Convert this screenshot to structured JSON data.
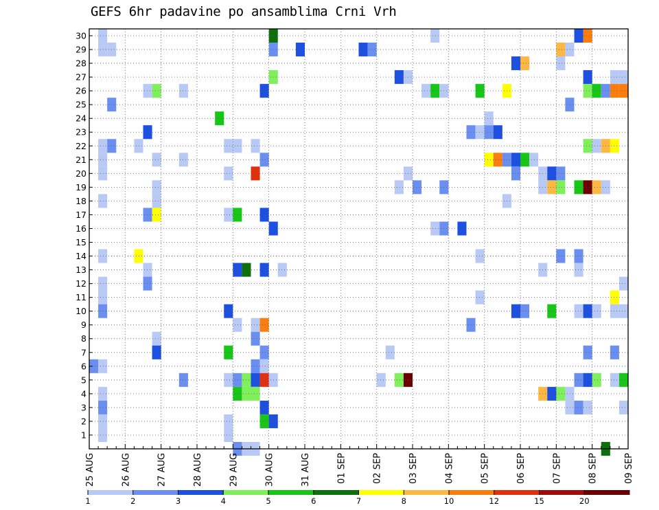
{
  "chart_data": {
    "type": "heatmap",
    "title": "GEFS 6hr padavine po ansamblima Crni Vrh",
    "xlabel": "",
    "ylabel": "",
    "x_tick_labels": [
      "25 AUG",
      "26 AUG",
      "27 AUG",
      "28 AUG",
      "29 AUG",
      "30 AUG",
      "31 AUG",
      "01 SEP",
      "02 SEP",
      "03 SEP",
      "04 SEP",
      "05 SEP",
      "06 SEP",
      "07 SEP",
      "08 SEP",
      "09 SEP"
    ],
    "y_tick_labels": [
      "1",
      "2",
      "3",
      "4",
      "5",
      "6",
      "7",
      "8",
      "9",
      "10",
      "11",
      "12",
      "13",
      "14",
      "15",
      "16",
      "17",
      "18",
      "19",
      "20",
      "21",
      "22",
      "23",
      "24",
      "25",
      "26",
      "27",
      "28",
      "29",
      "30"
    ],
    "xlim": [
      0,
      60
    ],
    "ylim": [
      0,
      30
    ],
    "x_step_hours": 6,
    "grid": true,
    "legend": {
      "placement": "bottom",
      "thresholds": [
        "1",
        "2",
        "3",
        "4",
        "5",
        "6",
        "7",
        "8",
        "10",
        "12",
        "15",
        "20"
      ],
      "colors": [
        "#b9c9f5",
        "#6a8ff0",
        "#1d4fe0",
        "#7ff05c",
        "#17c617",
        "#0d700d",
        "#ffff00",
        "#fdb844",
        "#fa7e0f",
        "#e0300d",
        "#a00c0c",
        "#6a0000"
      ]
    },
    "cells": [
      {
        "x": 1,
        "y": 30,
        "c": 0
      },
      {
        "x": 20,
        "y": 30,
        "c": 5
      },
      {
        "x": 38,
        "y": 30,
        "c": 0
      },
      {
        "x": 54,
        "y": 30,
        "c": 2
      },
      {
        "x": 55,
        "y": 30,
        "c": 8
      },
      {
        "x": 1,
        "y": 29,
        "c": 0
      },
      {
        "x": 2,
        "y": 29,
        "c": 0
      },
      {
        "x": 20,
        "y": 29,
        "c": 1
      },
      {
        "x": 23,
        "y": 29,
        "c": 2
      },
      {
        "x": 30,
        "y": 29,
        "c": 2
      },
      {
        "x": 31,
        "y": 29,
        "c": 1
      },
      {
        "x": 52,
        "y": 29,
        "c": 7
      },
      {
        "x": 53,
        "y": 29,
        "c": 0
      },
      {
        "x": 47,
        "y": 28,
        "c": 2
      },
      {
        "x": 48,
        "y": 28,
        "c": 7
      },
      {
        "x": 52,
        "y": 28,
        "c": 0
      },
      {
        "x": 20,
        "y": 27,
        "c": 3
      },
      {
        "x": 34,
        "y": 27,
        "c": 2
      },
      {
        "x": 35,
        "y": 27,
        "c": 0
      },
      {
        "x": 55,
        "y": 27,
        "c": 2
      },
      {
        "x": 58,
        "y": 27,
        "c": 0
      },
      {
        "x": 59,
        "y": 27,
        "c": 0
      },
      {
        "x": 6,
        "y": 26,
        "c": 0
      },
      {
        "x": 7,
        "y": 26,
        "c": 3
      },
      {
        "x": 10,
        "y": 26,
        "c": 0
      },
      {
        "x": 19,
        "y": 26,
        "c": 2
      },
      {
        "x": 37,
        "y": 26,
        "c": 0
      },
      {
        "x": 38,
        "y": 26,
        "c": 4
      },
      {
        "x": 39,
        "y": 26,
        "c": 0
      },
      {
        "x": 43,
        "y": 26,
        "c": 4
      },
      {
        "x": 46,
        "y": 26,
        "c": 6
      },
      {
        "x": 55,
        "y": 26,
        "c": 3
      },
      {
        "x": 56,
        "y": 26,
        "c": 4
      },
      {
        "x": 57,
        "y": 26,
        "c": 1
      },
      {
        "x": 58,
        "y": 26,
        "c": 8
      },
      {
        "x": 59,
        "y": 26,
        "c": 8
      },
      {
        "x": 2,
        "y": 25,
        "c": 1
      },
      {
        "x": 53,
        "y": 25,
        "c": 1
      },
      {
        "x": 14,
        "y": 24,
        "c": 4
      },
      {
        "x": 44,
        "y": 24,
        "c": 0
      },
      {
        "x": 6,
        "y": 23,
        "c": 2
      },
      {
        "x": 42,
        "y": 23,
        "c": 1
      },
      {
        "x": 43,
        "y": 23,
        "c": 0
      },
      {
        "x": 44,
        "y": 23,
        "c": 1
      },
      {
        "x": 45,
        "y": 23,
        "c": 2
      },
      {
        "x": 1,
        "y": 22,
        "c": 0
      },
      {
        "x": 2,
        "y": 22,
        "c": 1
      },
      {
        "x": 5,
        "y": 22,
        "c": 0
      },
      {
        "x": 15,
        "y": 22,
        "c": 0
      },
      {
        "x": 16,
        "y": 22,
        "c": 0
      },
      {
        "x": 18,
        "y": 22,
        "c": 0
      },
      {
        "x": 55,
        "y": 22,
        "c": 3
      },
      {
        "x": 56,
        "y": 22,
        "c": 0
      },
      {
        "x": 57,
        "y": 22,
        "c": 7
      },
      {
        "x": 58,
        "y": 22,
        "c": 6
      },
      {
        "x": 1,
        "y": 21,
        "c": 0
      },
      {
        "x": 7,
        "y": 21,
        "c": 0
      },
      {
        "x": 10,
        "y": 21,
        "c": 0
      },
      {
        "x": 19,
        "y": 21,
        "c": 1
      },
      {
        "x": 44,
        "y": 21,
        "c": 6
      },
      {
        "x": 45,
        "y": 21,
        "c": 8
      },
      {
        "x": 46,
        "y": 21,
        "c": 1
      },
      {
        "x": 47,
        "y": 21,
        "c": 2
      },
      {
        "x": 48,
        "y": 21,
        "c": 4
      },
      {
        "x": 49,
        "y": 21,
        "c": 0
      },
      {
        "x": 1,
        "y": 20,
        "c": 0
      },
      {
        "x": 15,
        "y": 20,
        "c": 0
      },
      {
        "x": 18,
        "y": 20,
        "c": 9
      },
      {
        "x": 35,
        "y": 20,
        "c": 0
      },
      {
        "x": 47,
        "y": 20,
        "c": 1
      },
      {
        "x": 50,
        "y": 20,
        "c": 0
      },
      {
        "x": 51,
        "y": 20,
        "c": 2
      },
      {
        "x": 52,
        "y": 20,
        "c": 1
      },
      {
        "x": 7,
        "y": 19,
        "c": 0
      },
      {
        "x": 34,
        "y": 19,
        "c": 0
      },
      {
        "x": 36,
        "y": 19,
        "c": 1
      },
      {
        "x": 39,
        "y": 19,
        "c": 1
      },
      {
        "x": 50,
        "y": 19,
        "c": 0
      },
      {
        "x": 51,
        "y": 19,
        "c": 7
      },
      {
        "x": 52,
        "y": 19,
        "c": 3
      },
      {
        "x": 54,
        "y": 19,
        "c": 4
      },
      {
        "x": 55,
        "y": 19,
        "c": 11
      },
      {
        "x": 56,
        "y": 19,
        "c": 7
      },
      {
        "x": 57,
        "y": 19,
        "c": 0
      },
      {
        "x": 1,
        "y": 18,
        "c": 0
      },
      {
        "x": 7,
        "y": 18,
        "c": 0
      },
      {
        "x": 46,
        "y": 18,
        "c": 0
      },
      {
        "x": 6,
        "y": 17,
        "c": 1
      },
      {
        "x": 7,
        "y": 17,
        "c": 6
      },
      {
        "x": 15,
        "y": 17,
        "c": 0
      },
      {
        "x": 16,
        "y": 17,
        "c": 4
      },
      {
        "x": 19,
        "y": 17,
        "c": 2
      },
      {
        "x": 20,
        "y": 16,
        "c": 2
      },
      {
        "x": 38,
        "y": 16,
        "c": 0
      },
      {
        "x": 39,
        "y": 16,
        "c": 1
      },
      {
        "x": 41,
        "y": 16,
        "c": 2
      },
      {
        "x": 1,
        "y": 14,
        "c": 0
      },
      {
        "x": 5,
        "y": 14,
        "c": 6
      },
      {
        "x": 43,
        "y": 14,
        "c": 0
      },
      {
        "x": 52,
        "y": 14,
        "c": 1
      },
      {
        "x": 54,
        "y": 14,
        "c": 1
      },
      {
        "x": 6,
        "y": 13,
        "c": 0
      },
      {
        "x": 16,
        "y": 13,
        "c": 2
      },
      {
        "x": 17,
        "y": 13,
        "c": 5
      },
      {
        "x": 19,
        "y": 13,
        "c": 2
      },
      {
        "x": 21,
        "y": 13,
        "c": 0
      },
      {
        "x": 50,
        "y": 13,
        "c": 0
      },
      {
        "x": 54,
        "y": 13,
        "c": 0
      },
      {
        "x": 1,
        "y": 12,
        "c": 0
      },
      {
        "x": 6,
        "y": 12,
        "c": 1
      },
      {
        "x": 59,
        "y": 12,
        "c": 0
      },
      {
        "x": 1,
        "y": 11,
        "c": 0
      },
      {
        "x": 43,
        "y": 11,
        "c": 0
      },
      {
        "x": 58,
        "y": 11,
        "c": 6
      },
      {
        "x": 1,
        "y": 10,
        "c": 1
      },
      {
        "x": 15,
        "y": 10,
        "c": 2
      },
      {
        "x": 47,
        "y": 10,
        "c": 2
      },
      {
        "x": 48,
        "y": 10,
        "c": 1
      },
      {
        "x": 51,
        "y": 10,
        "c": 4
      },
      {
        "x": 54,
        "y": 10,
        "c": 0
      },
      {
        "x": 55,
        "y": 10,
        "c": 2
      },
      {
        "x": 56,
        "y": 10,
        "c": 0
      },
      {
        "x": 58,
        "y": 10,
        "c": 0
      },
      {
        "x": 59,
        "y": 10,
        "c": 0
      },
      {
        "x": 16,
        "y": 9,
        "c": 0
      },
      {
        "x": 18,
        "y": 9,
        "c": 0
      },
      {
        "x": 19,
        "y": 9,
        "c": 8
      },
      {
        "x": 42,
        "y": 9,
        "c": 1
      },
      {
        "x": 7,
        "y": 8,
        "c": 0
      },
      {
        "x": 18,
        "y": 8,
        "c": 1
      },
      {
        "x": 7,
        "y": 7,
        "c": 2
      },
      {
        "x": 15,
        "y": 7,
        "c": 4
      },
      {
        "x": 19,
        "y": 7,
        "c": 1
      },
      {
        "x": 33,
        "y": 7,
        "c": 0
      },
      {
        "x": 55,
        "y": 7,
        "c": 1
      },
      {
        "x": 58,
        "y": 7,
        "c": 1
      },
      {
        "x": 0,
        "y": 6,
        "c": 1
      },
      {
        "x": 1,
        "y": 6,
        "c": 0
      },
      {
        "x": 18,
        "y": 6,
        "c": 1
      },
      {
        "x": 19,
        "y": 6,
        "c": 0
      },
      {
        "x": 10,
        "y": 5,
        "c": 1
      },
      {
        "x": 15,
        "y": 5,
        "c": 0
      },
      {
        "x": 16,
        "y": 5,
        "c": 1
      },
      {
        "x": 17,
        "y": 5,
        "c": 3
      },
      {
        "x": 18,
        "y": 5,
        "c": 2
      },
      {
        "x": 19,
        "y": 5,
        "c": 9
      },
      {
        "x": 20,
        "y": 5,
        "c": 0
      },
      {
        "x": 32,
        "y": 5,
        "c": 0
      },
      {
        "x": 34,
        "y": 5,
        "c": 3
      },
      {
        "x": 35,
        "y": 5,
        "c": 11
      },
      {
        "x": 54,
        "y": 5,
        "c": 1
      },
      {
        "x": 55,
        "y": 5,
        "c": 2
      },
      {
        "x": 56,
        "y": 5,
        "c": 3
      },
      {
        "x": 58,
        "y": 5,
        "c": 0
      },
      {
        "x": 59,
        "y": 5,
        "c": 4
      },
      {
        "x": 1,
        "y": 4,
        "c": 0
      },
      {
        "x": 16,
        "y": 4,
        "c": 4
      },
      {
        "x": 17,
        "y": 4,
        "c": 3
      },
      {
        "x": 18,
        "y": 4,
        "c": 3
      },
      {
        "x": 50,
        "y": 4,
        "c": 7
      },
      {
        "x": 51,
        "y": 4,
        "c": 2
      },
      {
        "x": 52,
        "y": 4,
        "c": 3
      },
      {
        "x": 53,
        "y": 4,
        "c": 0
      },
      {
        "x": 1,
        "y": 3,
        "c": 1
      },
      {
        "x": 19,
        "y": 3,
        "c": 2
      },
      {
        "x": 53,
        "y": 3,
        "c": 0
      },
      {
        "x": 54,
        "y": 3,
        "c": 1
      },
      {
        "x": 55,
        "y": 3,
        "c": 0
      },
      {
        "x": 59,
        "y": 3,
        "c": 0
      },
      {
        "x": 1,
        "y": 2,
        "c": 0
      },
      {
        "x": 15,
        "y": 2,
        "c": 0
      },
      {
        "x": 19,
        "y": 2,
        "c": 4
      },
      {
        "x": 20,
        "y": 2,
        "c": 2
      },
      {
        "x": 1,
        "y": 1,
        "c": 0
      },
      {
        "x": 15,
        "y": 1,
        "c": 0
      },
      {
        "x": 16,
        "y": 0,
        "c": 1
      },
      {
        "x": 17,
        "y": 0,
        "c": 0
      },
      {
        "x": 18,
        "y": 0,
        "c": 0
      },
      {
        "x": 57,
        "y": 0,
        "c": 5
      }
    ]
  }
}
